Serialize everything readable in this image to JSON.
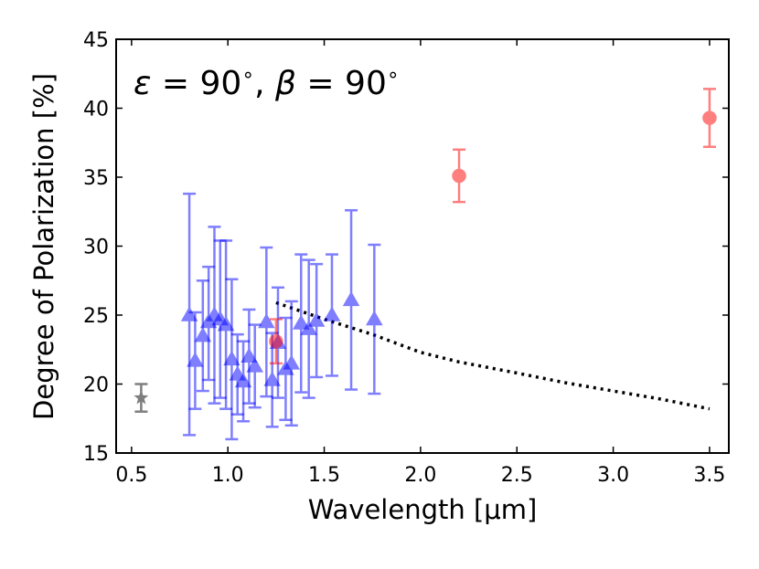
{
  "chart_data": {
    "type": "scatter",
    "title": "",
    "xlabel": "Wavelength [μm]",
    "ylabel": "Degree of Polarization [%]",
    "xlim": [
      0.42,
      3.6
    ],
    "ylim": [
      15,
      45
    ],
    "xticks": [
      0.5,
      1.0,
      1.5,
      2.0,
      2.5,
      3.0,
      3.5
    ],
    "xtick_labels": [
      "0.5",
      "1.0",
      "1.5",
      "2.0",
      "2.5",
      "3.0",
      "3.5"
    ],
    "yticks": [
      15,
      20,
      25,
      30,
      35,
      40,
      45
    ],
    "ytick_labels": [
      "15",
      "20",
      "25",
      "30",
      "35",
      "40",
      "45"
    ],
    "annotation": {
      "epsilon_symbol": "ε",
      "eq1": " = 90",
      "degree1": "∘",
      "sep": ", ",
      "beta_symbol": "β",
      "eq2": " = 90",
      "degree2": "∘"
    },
    "series": [
      {
        "name": "blue-triangles",
        "marker": "triangle",
        "color": "#0000ff",
        "points": [
          {
            "x": 0.8,
            "y": 25.0,
            "lo": 16.3,
            "hi": 33.8
          },
          {
            "x": 0.83,
            "y": 21.7,
            "lo": 18.2,
            "hi": 25.2
          },
          {
            "x": 0.87,
            "y": 23.5,
            "lo": 19.5,
            "hi": 27.5
          },
          {
            "x": 0.9,
            "y": 24.5,
            "lo": 20.3,
            "hi": 28.5
          },
          {
            "x": 0.93,
            "y": 25.0,
            "lo": 18.6,
            "hi": 31.4
          },
          {
            "x": 0.96,
            "y": 24.7,
            "lo": 19.0,
            "hi": 30.4
          },
          {
            "x": 0.99,
            "y": 24.3,
            "lo": 18.2,
            "hi": 30.4
          },
          {
            "x": 1.02,
            "y": 21.8,
            "lo": 16.0,
            "hi": 27.6
          },
          {
            "x": 1.05,
            "y": 20.7,
            "lo": 17.8,
            "hi": 23.6
          },
          {
            "x": 1.08,
            "y": 20.2,
            "lo": 17.3,
            "hi": 23.1
          },
          {
            "x": 1.11,
            "y": 22.0,
            "lo": 18.6,
            "hi": 25.4
          },
          {
            "x": 1.14,
            "y": 21.3,
            "lo": 18.3,
            "hi": 24.3
          },
          {
            "x": 1.2,
            "y": 24.5,
            "lo": 19.1,
            "hi": 29.9
          },
          {
            "x": 1.23,
            "y": 20.3,
            "lo": 16.9,
            "hi": 23.7
          },
          {
            "x": 1.26,
            "y": 23.0,
            "lo": 19.0,
            "hi": 27.0
          },
          {
            "x": 1.3,
            "y": 21.1,
            "lo": 17.4,
            "hi": 24.8
          },
          {
            "x": 1.33,
            "y": 21.5,
            "lo": 17.0,
            "hi": 26.0
          },
          {
            "x": 1.38,
            "y": 24.4,
            "lo": 19.4,
            "hi": 29.4
          },
          {
            "x": 1.42,
            "y": 24.0,
            "lo": 19.0,
            "hi": 29.0
          },
          {
            "x": 1.46,
            "y": 24.6,
            "lo": 20.5,
            "hi": 28.7
          },
          {
            "x": 1.54,
            "y": 25.0,
            "lo": 20.6,
            "hi": 29.4
          },
          {
            "x": 1.64,
            "y": 26.1,
            "lo": 19.6,
            "hi": 32.6
          },
          {
            "x": 1.76,
            "y": 24.7,
            "lo": 19.3,
            "hi": 30.1
          }
        ]
      },
      {
        "name": "red-circles",
        "marker": "circle",
        "color": "#ff0000",
        "points": [
          {
            "x": 1.25,
            "y": 23.1,
            "lo": 21.5,
            "hi": 24.7
          },
          {
            "x": 2.2,
            "y": 35.1,
            "lo": 33.2,
            "hi": 37.0
          },
          {
            "x": 3.5,
            "y": 39.3,
            "lo": 37.2,
            "hi": 41.4
          }
        ]
      },
      {
        "name": "black-star",
        "marker": "star",
        "color": "#000000",
        "points": [
          {
            "x": 0.55,
            "y": 19.0,
            "lo": 18.0,
            "hi": 20.0
          }
        ]
      }
    ],
    "model_curve": {
      "name": "dotted-model",
      "style": "dotted",
      "color": "#000000",
      "x": [
        1.25,
        1.5,
        1.75,
        2.0,
        2.2,
        2.5,
        2.75,
        3.0,
        3.25,
        3.5
      ],
      "y": [
        25.9,
        24.7,
        23.6,
        22.3,
        21.6,
        20.8,
        20.1,
        19.5,
        18.9,
        18.2
      ]
    }
  }
}
